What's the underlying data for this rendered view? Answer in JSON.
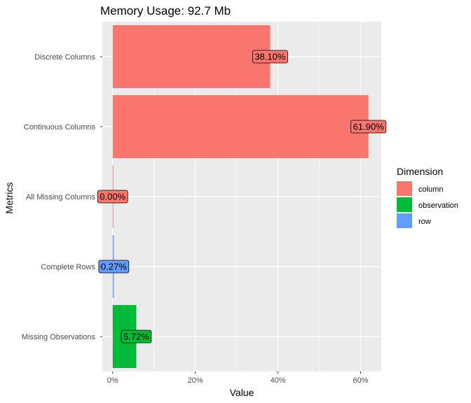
{
  "chart_data": {
    "type": "bar",
    "orientation": "horizontal",
    "title": "Memory Usage: 92.7 Mb",
    "xlabel": "Value",
    "ylabel": "Metrics",
    "xlim": [
      -0.025,
      0.65
    ],
    "x_ticks": [
      0,
      0.2,
      0.4,
      0.6
    ],
    "x_tick_labels": [
      "0%",
      "20%",
      "40%",
      "60%"
    ],
    "grid": true,
    "legend": {
      "title": "Dimension",
      "position": "right",
      "entries": [
        {
          "name": "column",
          "color": "#F8766D"
        },
        {
          "name": "observation",
          "color": "#00BA38"
        },
        {
          "name": "row",
          "color": "#619CFF"
        }
      ]
    },
    "categories": [
      "Discrete Columns",
      "Continuous Columns",
      "All Missing Columns",
      "Complete Rows",
      "Missing Observations"
    ],
    "values": [
      0.381,
      0.619,
      0.0,
      0.0027,
      0.0572
    ],
    "dimensions": [
      "column",
      "column",
      "column",
      "row",
      "observation"
    ],
    "labels": [
      "38.10%",
      "61.90%",
      "0.00%",
      "0.27%",
      "5.72%"
    ]
  }
}
